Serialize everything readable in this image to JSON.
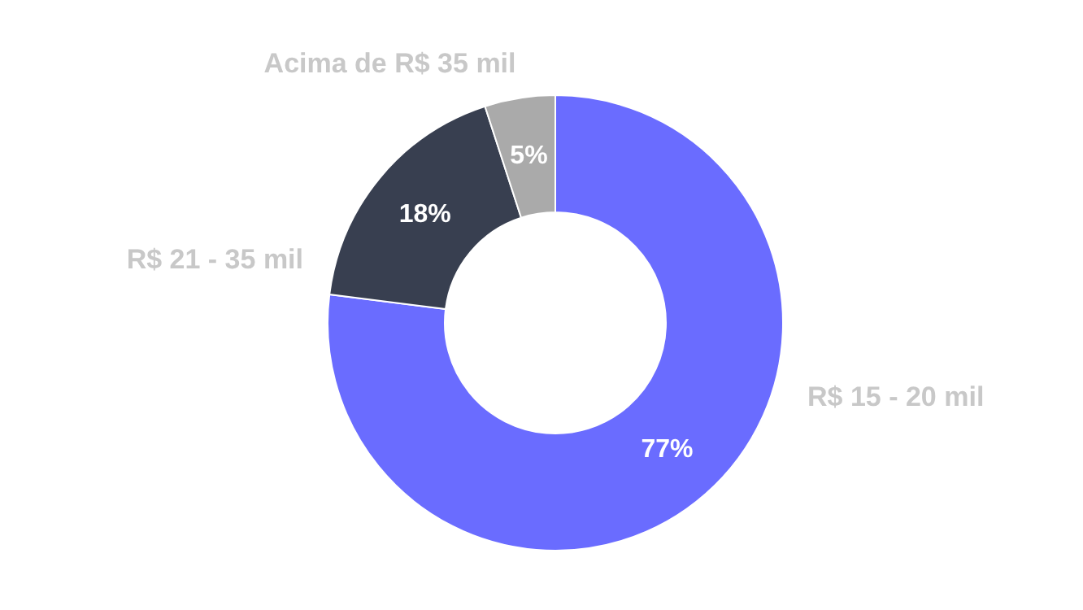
{
  "chart_data": {
    "type": "donut",
    "categories": [
      "R$ 15 - 20 mil",
      "R$ 21 - 35 mil",
      "Acima de R$ 35 mil"
    ],
    "values": [
      77,
      18,
      5
    ],
    "colors": [
      "#6a6cff",
      "#383f50",
      "#aaaaaa"
    ],
    "value_labels": [
      "77%",
      "18%",
      "5%"
    ]
  }
}
